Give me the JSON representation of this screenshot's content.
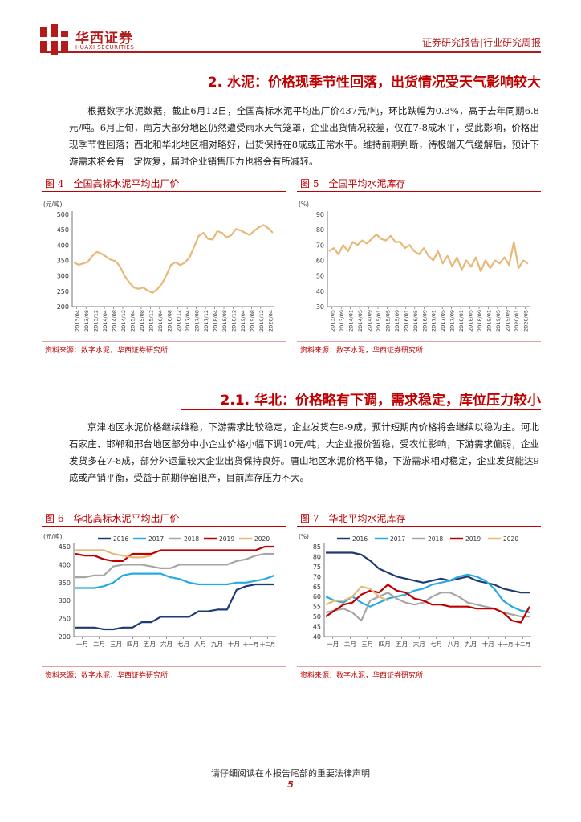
{
  "header": {
    "logo_cn": "华西证券",
    "logo_en": "HUAXI SECURITIES",
    "report_type": "证券研究报告|行业研究周报"
  },
  "section1": {
    "title": "2. 水泥：价格现季节性回落，出货情况受天气影响较大",
    "paragraph": "根据数字水泥数据，截止6月12日，全国高标水泥平均出厂价437元/吨，环比跌幅为0.3%，高于去年同期6.8元/吨。6月上旬，南方大部分地区仍然遭受雨水天气笼罩，企业出货情况较差，仅在7-8成水平，受此影响，价格出现季节性回落；西北和华北地区相对略好，出货保持在8成或正常水平。维持前期判断，待极端天气缓解后，预计下游需求将会有一定恢复，届时企业销售压力也将会有所减轻。"
  },
  "section2": {
    "title": "2.1. 华北：价格略有下调，需求稳定，库位压力较小",
    "paragraph": "京津地区水泥价格继续维稳，下游需求比较稳定，企业发货在8-9成，预计短期内价格将会继续以稳为主。河北石家庄、邯郸和邢台地区部分中小企业价格小幅下调10元/吨，大企业报价暂稳，受农忙影响，下游需求偏弱，企业发货多在7-8成，部分外运量较大企业出货保持良好。唐山地区水泥价格平稳，下游需求相对稳定，企业发货能达9成或产销平衡，受益于前期停窑限产，目前库存压力不大。"
  },
  "figures": {
    "fig4": {
      "caption": "图 4　全国高标水泥平均出厂价",
      "source": "资料来源：数字水泥，华西证券研究所"
    },
    "fig5": {
      "caption": "图 5　全国平均水泥库存",
      "source": "资料来源：数字水泥，华西证券研究所"
    },
    "fig6": {
      "caption": "图 6　华北高标水泥平均出厂价",
      "source": "资料来源：数字水泥，华西证券研究所"
    },
    "fig7": {
      "caption": "图 7　华北平均水泥库存",
      "source": "资料来源：数字水泥，华西证券研究所"
    }
  },
  "footer": {
    "notice": "请仔细阅读在本报告尾部的重要法律声明",
    "page": "5"
  },
  "colors": {
    "brand": "#b31b1b",
    "title": "#c00000",
    "line": "#e8b878"
  },
  "chart_data": [
    {
      "id": "fig4",
      "type": "line",
      "ylabel": "(元/吨)",
      "ylim": [
        200,
        500
      ],
      "yticks": [
        200,
        250,
        300,
        350,
        400,
        450,
        500
      ],
      "xtick_labels": [
        "2013/04",
        "2013/08",
        "2013/12",
        "2014/04",
        "2014/08",
        "2014/12",
        "2015/04",
        "2015/08",
        "2015/12",
        "2016/04",
        "2016/08",
        "2016/12",
        "2017/04",
        "2017/08",
        "2017/12",
        "2018/04",
        "2018/08",
        "2018/12",
        "2019/04",
        "2019/08",
        "2019/12",
        "2020/04"
      ],
      "series": [
        {
          "name": "全国高标水泥平均出厂价",
          "color": "#e8b878",
          "values": [
            344,
            336,
            340,
            345,
            365,
            378,
            372,
            362,
            352,
            348,
            330,
            300,
            278,
            262,
            258,
            262,
            252,
            245,
            256,
            274,
            302,
            336,
            344,
            335,
            343,
            360,
            395,
            430,
            440,
            420,
            418,
            445,
            440,
            425,
            432,
            452,
            448,
            440,
            433,
            447,
            458,
            465,
            455,
            440
          ]
        }
      ]
    },
    {
      "id": "fig5",
      "type": "line",
      "ylabel": "(%)",
      "ylim": [
        30,
        90
      ],
      "yticks": [
        30,
        40,
        50,
        60,
        70,
        80,
        90
      ],
      "xtick_labels": [
        "2013/05",
        "2013/09",
        "2014/01",
        "2014/05",
        "2014/09",
        "2015/01",
        "2015/05",
        "2015/09",
        "2016/01",
        "2016/05",
        "2016/09",
        "2017/01",
        "2017/05",
        "2017/09",
        "2018/01",
        "2018/05",
        "2018/09",
        "2019/01",
        "2019/05",
        "2019/09",
        "2020/01",
        "2020/05"
      ],
      "series": [
        {
          "name": "全国平均水泥库存",
          "color": "#e8b878",
          "values": [
            66,
            68,
            64,
            70,
            66,
            72,
            70,
            73,
            71,
            74,
            77,
            74,
            73,
            76,
            72,
            72,
            68,
            70,
            66,
            64,
            68,
            63,
            60,
            66,
            58,
            63,
            56,
            62,
            54,
            60,
            56,
            62,
            53,
            60,
            55,
            60,
            58,
            62,
            57,
            72,
            55,
            60,
            58
          ]
        }
      ]
    },
    {
      "id": "fig6",
      "type": "line",
      "ylabel": "(元/吨)",
      "ylim": [
        200,
        450
      ],
      "yticks": [
        200,
        250,
        300,
        350,
        400,
        450
      ],
      "xtick_labels": [
        "一月",
        "二月",
        "三月",
        "四月",
        "五月",
        "六月",
        "七月",
        "八月",
        "九月",
        "十月",
        "十一月",
        "十二月"
      ],
      "series": [
        {
          "name": "2016",
          "color": "#1f3b73",
          "values": [
            225,
            225,
            225,
            220,
            220,
            225,
            225,
            240,
            240,
            255,
            255,
            255,
            255,
            270,
            270,
            275,
            275,
            330,
            340,
            345,
            345,
            345
          ]
        },
        {
          "name": "2017",
          "color": "#27aae1",
          "values": [
            335,
            335,
            335,
            340,
            350,
            370,
            375,
            375,
            375,
            375,
            365,
            360,
            350,
            345,
            345,
            345,
            345,
            350,
            350,
            355,
            360,
            370
          ]
        },
        {
          "name": "2018",
          "color": "#a6a6a6",
          "values": [
            365,
            365,
            370,
            370,
            395,
            400,
            400,
            400,
            395,
            390,
            390,
            400,
            400,
            400,
            400,
            400,
            400,
            410,
            415,
            425,
            430,
            430
          ]
        },
        {
          "name": "2019",
          "color": "#c00000",
          "values": [
            430,
            425,
            425,
            415,
            410,
            410,
            430,
            430,
            430,
            440,
            440,
            440,
            440,
            440,
            440,
            440,
            440,
            440,
            440,
            440,
            450,
            450
          ]
        },
        {
          "name": "2020",
          "color": "#e8b878",
          "values": [
            440,
            440,
            440,
            440,
            430,
            425,
            420,
            420,
            425
          ]
        }
      ]
    },
    {
      "id": "fig7",
      "type": "line",
      "ylabel": "(%)",
      "ylim": [
        40,
        85
      ],
      "yticks": [
        40,
        45,
        50,
        55,
        60,
        65,
        70,
        75,
        80,
        85
      ],
      "xtick_labels": [
        "一月",
        "二月",
        "三月",
        "四月",
        "五月",
        "六月",
        "七月",
        "八月",
        "九月",
        "十月",
        "十一月",
        "十二月"
      ],
      "series": [
        {
          "name": "2016",
          "color": "#1f3b73",
          "values": [
            82,
            82,
            82,
            82,
            81,
            78,
            74,
            72,
            70,
            69,
            68,
            67,
            68,
            69,
            68,
            69,
            70,
            68,
            67,
            66,
            64,
            63,
            62,
            62
          ]
        },
        {
          "name": "2017",
          "color": "#27aae1",
          "values": [
            60,
            58,
            57,
            60,
            57,
            55,
            57,
            59,
            60,
            61,
            63,
            64,
            66,
            67,
            68,
            70,
            71,
            70,
            68,
            64,
            58,
            55,
            53,
            52
          ]
        },
        {
          "name": "2018",
          "color": "#a6a6a6",
          "values": [
            52,
            53,
            54,
            52,
            48,
            58,
            60,
            62,
            59,
            57,
            56,
            57,
            60,
            62,
            62,
            60,
            57,
            56,
            55,
            54,
            52,
            51,
            50,
            50
          ]
        },
        {
          "name": "2019",
          "color": "#c00000",
          "values": [
            50,
            53,
            56,
            57,
            61,
            63,
            62,
            66,
            63,
            62,
            59,
            58,
            56,
            56,
            55,
            55,
            55,
            54,
            54,
            54,
            52,
            48,
            47,
            55
          ]
        },
        {
          "name": "2020",
          "color": "#e8b878",
          "values": [
            56,
            58,
            58,
            60,
            65,
            64,
            60,
            58
          ]
        }
      ]
    }
  ]
}
